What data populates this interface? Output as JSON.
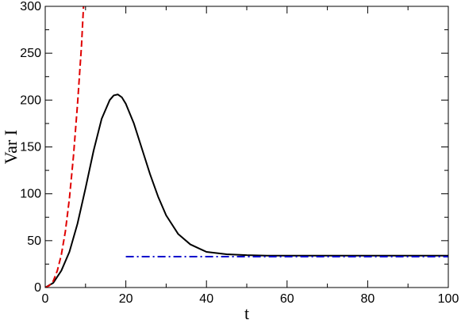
{
  "chart_data": {
    "type": "line",
    "title": "",
    "xlabel": "t",
    "ylabel": "Var I",
    "xlim": [
      0,
      100
    ],
    "ylim": [
      0,
      300
    ],
    "x_ticks": [
      0,
      20,
      40,
      60,
      80,
      100
    ],
    "y_ticks": [
      0,
      50,
      100,
      150,
      200,
      250,
      300
    ],
    "grid": false,
    "legend": "none",
    "series": [
      {
        "style": "solid",
        "color": "#000000",
        "x": [
          0,
          2,
          4,
          6,
          8,
          10,
          12,
          14,
          16,
          17,
          18,
          19,
          20,
          22,
          24,
          26,
          28,
          30,
          33,
          36,
          40,
          45,
          50,
          55,
          60,
          70,
          80,
          90,
          100
        ],
        "y": [
          0,
          5,
          18,
          38,
          68,
          106,
          146,
          180,
          200,
          205,
          206,
          203,
          196,
          175,
          148,
          121,
          97,
          77,
          57,
          46,
          38,
          35.5,
          34.5,
          34,
          34,
          34,
          34,
          34,
          34
        ]
      },
      {
        "style": "dashed",
        "color": "#e00000",
        "x": [
          0,
          1,
          2,
          3,
          4,
          5,
          6,
          7,
          8,
          9,
          9.5
        ],
        "y": [
          0,
          2,
          7,
          18,
          35,
          60,
          95,
          140,
          195,
          258,
          300
        ]
      },
      {
        "style": "dashdot",
        "color": "#0000cc",
        "x": [
          20,
          100
        ],
        "y": [
          33,
          33
        ]
      }
    ]
  }
}
